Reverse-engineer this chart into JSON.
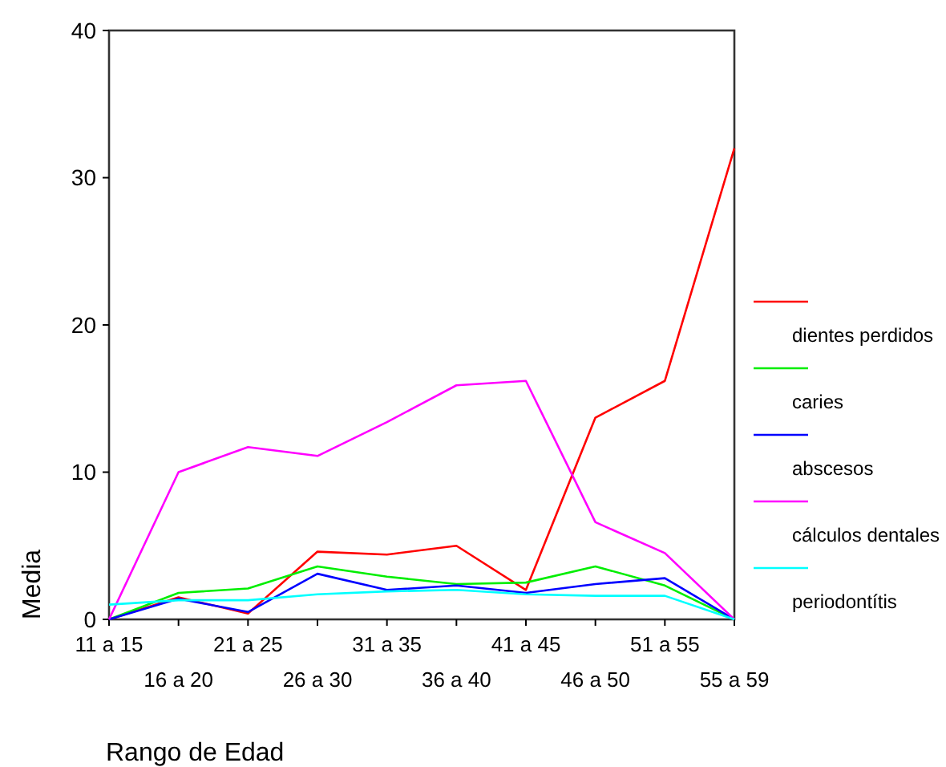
{
  "chart_data": {
    "type": "line",
    "xlabel": "Rango de Edad",
    "ylabel": "Media",
    "categories": [
      "11 a 15",
      "16 a 20",
      "21 a 25",
      "26 a 30",
      "31 a 35",
      "36 a 40",
      "41 a 45",
      "46 a 50",
      "51 a 55",
      "55 a 59"
    ],
    "ylim": [
      0,
      40
    ],
    "yticks": [
      0,
      10,
      20,
      30,
      40
    ],
    "grid": false,
    "legend": "right",
    "marker": "none",
    "line_style": "solid",
    "series": [
      {
        "name": "dientes perdidos",
        "color": "#ff0000",
        "values": [
          0,
          1.5,
          0.4,
          4.6,
          4.4,
          5.0,
          2.0,
          13.7,
          16.2,
          32
        ]
      },
      {
        "name": "caries",
        "color": "#00ee00",
        "values": [
          0,
          1.8,
          2.1,
          3.6,
          2.9,
          2.4,
          2.5,
          3.6,
          2.3,
          0
        ]
      },
      {
        "name": "abscesos",
        "color": "#0000ff",
        "values": [
          0,
          1.4,
          0.5,
          3.1,
          2.0,
          2.3,
          1.8,
          2.4,
          2.8,
          0
        ]
      },
      {
        "name": "cálculos dentales",
        "color": "#ff00ff",
        "values": [
          0,
          10.0,
          11.7,
          11.1,
          13.4,
          15.9,
          16.2,
          6.6,
          4.5,
          0
        ]
      },
      {
        "name": "periodontítis",
        "color": "#00ffff",
        "values": [
          1.0,
          1.3,
          1.3,
          1.7,
          1.9,
          2.0,
          1.7,
          1.6,
          1.6,
          0
        ]
      }
    ]
  }
}
